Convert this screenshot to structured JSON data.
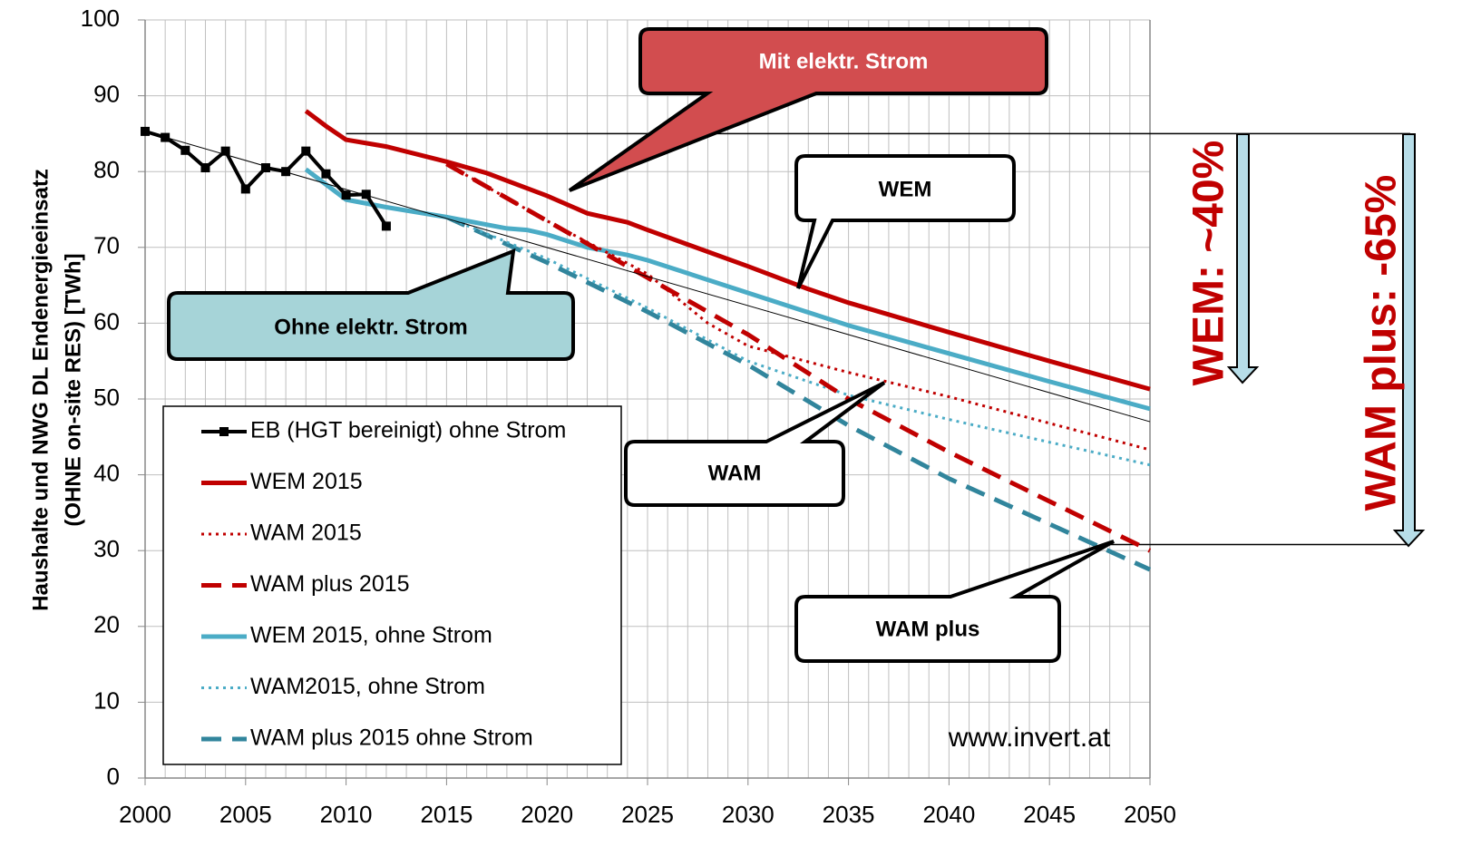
{
  "chart_data": {
    "type": "line",
    "y_label": [
      "Haushalte und NWG DL Endenergieeinsatz",
      "(OHNE on-site RES) [TWh]"
    ],
    "xlim": [
      2000,
      2050
    ],
    "ylim": [
      0,
      100
    ],
    "xticks": [
      2000,
      2005,
      2010,
      2015,
      2020,
      2025,
      2030,
      2035,
      2040,
      2045,
      2050
    ],
    "yticks": [
      0,
      10,
      20,
      30,
      40,
      50,
      60,
      70,
      80,
      90,
      100
    ],
    "grid": true,
    "x_minor_grid": 1,
    "series": [
      {
        "name": "EB (HGT bereinigt) ohne Strom",
        "color": "#000000",
        "dash": "solid",
        "marker": "square",
        "x": [
          2000,
          2001,
          2002,
          2003,
          2004,
          2005,
          2006,
          2007,
          2008,
          2009,
          2010,
          2011,
          2012
        ],
        "values": [
          85.3,
          84.5,
          82.8,
          80.5,
          82.7,
          77.7,
          80.5,
          80.0,
          82.7,
          79.7,
          76.9,
          77.0,
          72.8
        ]
      },
      {
        "name": "WEM 2015",
        "color": "#c00000",
        "dash": "solid",
        "x": [
          2008,
          2009,
          2010,
          2012,
          2015,
          2017,
          2020,
          2022,
          2024,
          2025,
          2030,
          2033,
          2035,
          2040,
          2045,
          2050
        ],
        "values": [
          88,
          86,
          84.2,
          83.3,
          81.3,
          79.8,
          76.8,
          74.5,
          73.3,
          72.3,
          67.5,
          64.5,
          62.7,
          58.8,
          55,
          51.3
        ]
      },
      {
        "name": "WAM 2015",
        "color": "#c00000",
        "dash": "dot",
        "x": [
          2015,
          2020,
          2025,
          2028,
          2030,
          2035,
          2040,
          2045,
          2050
        ],
        "values": [
          81,
          73.5,
          66.5,
          60,
          57,
          53.5,
          50.3,
          46.8,
          43.3
        ]
      },
      {
        "name": "WAM plus 2015",
        "color": "#c00000",
        "dash": "dash",
        "x": [
          2015,
          2020,
          2025,
          2030,
          2035,
          2040,
          2045,
          2050
        ],
        "values": [
          81,
          73.5,
          66,
          58.5,
          50,
          43,
          36.5,
          30
        ]
      },
      {
        "name": "WEM 2015, ohne Strom",
        "color": "#4bacc6",
        "dash": "solid",
        "x": [
          2008,
          2010,
          2012,
          2015,
          2018,
          2019,
          2020,
          2022,
          2024,
          2025,
          2030,
          2035,
          2040,
          2045,
          2050
        ],
        "values": [
          80.3,
          76.3,
          75.3,
          74,
          72.5,
          72.3,
          71.7,
          70,
          69,
          68.3,
          64,
          59.7,
          56,
          52.3,
          48.7
        ]
      },
      {
        "name": "WAM2015, ohne Strom",
        "color": "#4bacc6",
        "dash": "dot",
        "x": [
          2015,
          2020,
          2025,
          2030,
          2035,
          2040,
          2045,
          2050
        ],
        "values": [
          74,
          68.5,
          62,
          55,
          50.5,
          47.3,
          44.3,
          41.3
        ]
      },
      {
        "name": "WAM plus 2015 ohne Strom",
        "color": "#31859c",
        "dash": "dash",
        "x": [
          2015,
          2020,
          2025,
          2030,
          2035,
          2040,
          2045,
          2050
        ],
        "values": [
          74,
          68,
          61.5,
          54.5,
          46.5,
          39.5,
          33.5,
          27.5
        ]
      },
      {
        "color": "#000000",
        "dash": "thin",
        "x": [
          2000,
          2050
        ],
        "values": [
          85.3,
          47
        ]
      }
    ],
    "reference_lines": [
      {
        "value": 85,
        "from": 2010
      },
      {
        "value": 30.8,
        "from": 2048
      }
    ],
    "annotations": [
      "Mit elektr. Strom",
      "WEM",
      "Ohne elektr. Strom",
      "WAM",
      "WAM plus",
      "WEM: ~40%",
      "WAM plus: -65%",
      "www.invert.at"
    ]
  }
}
